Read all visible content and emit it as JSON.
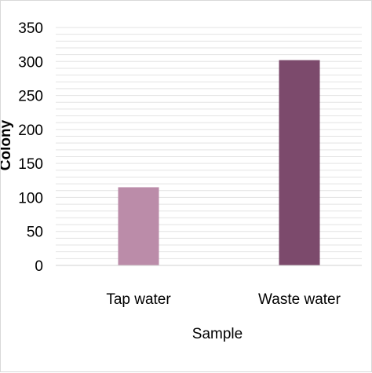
{
  "chart_data": {
    "type": "bar",
    "title": "",
    "xlabel": "Sample",
    "ylabel": "Colony",
    "categories": [
      "Tap water",
      "Waste water"
    ],
    "values": [
      115,
      302
    ],
    "bar_colors": [
      "#bb8ca9",
      "#7c4a6c"
    ],
    "ylim": [
      0,
      350
    ],
    "yticks": [
      0,
      50,
      100,
      150,
      200,
      250,
      300,
      350
    ],
    "ytick_labels": [
      "0",
      "50",
      "100",
      "150",
      "200",
      "250",
      "300",
      "350"
    ],
    "minor_grid_step": 10,
    "grid": true,
    "grid_color": "#e3e3e3",
    "legend": "none"
  }
}
